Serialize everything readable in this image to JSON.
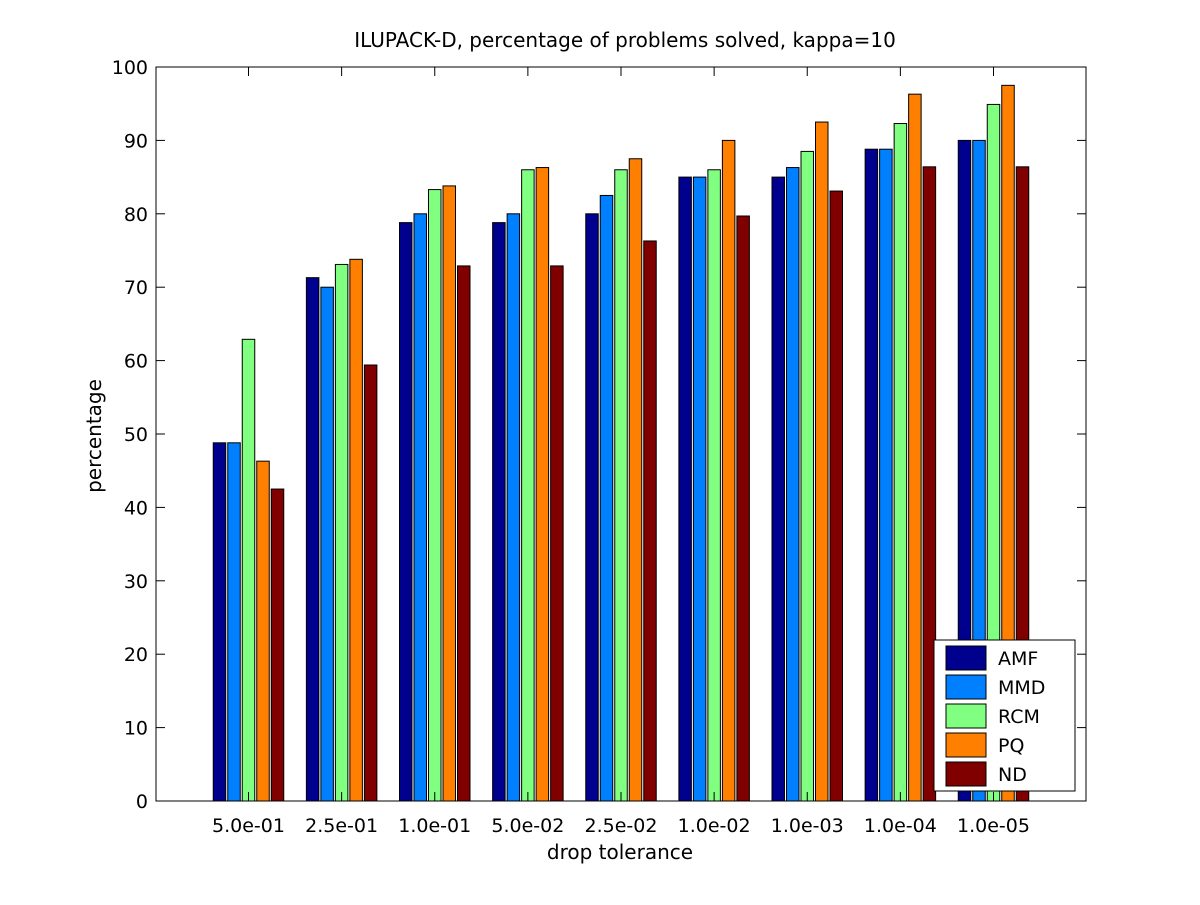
{
  "chart_data": {
    "type": "bar",
    "title": "ILUPACK-D, percentage of problems solved, kappa=10",
    "xlabel": "drop tolerance",
    "ylabel": "percentage",
    "ylim": [
      0,
      100
    ],
    "yticks": [
      "0",
      "10",
      "20",
      "30",
      "40",
      "50",
      "60",
      "70",
      "80",
      "90",
      "100"
    ],
    "categories": [
      "5.0e-01",
      "2.5e-01",
      "1.0e-01",
      "5.0e-02",
      "2.5e-02",
      "1.0e-02",
      "1.0e-03",
      "1.0e-04",
      "1.0e-05"
    ],
    "series": [
      {
        "name": "AMF",
        "color": "#00008f",
        "values": [
          48.8,
          71.3,
          78.8,
          78.8,
          80.0,
          85.0,
          85.0,
          88.8,
          90.0
        ]
      },
      {
        "name": "MMD",
        "color": "#0080ff",
        "values": [
          48.8,
          70.0,
          80.0,
          80.0,
          82.5,
          85.0,
          86.3,
          88.8,
          90.0
        ]
      },
      {
        "name": "RCM",
        "color": "#80ff80",
        "values": [
          62.9,
          73.1,
          83.3,
          86.0,
          86.0,
          86.0,
          88.5,
          92.3,
          94.9
        ]
      },
      {
        "name": "PQ",
        "color": "#ff8000",
        "values": [
          46.3,
          73.8,
          83.8,
          86.3,
          87.5,
          90.0,
          92.5,
          96.3,
          97.5
        ]
      },
      {
        "name": "ND",
        "color": "#800000",
        "values": [
          42.5,
          59.4,
          72.9,
          72.9,
          76.3,
          79.7,
          83.1,
          86.4,
          86.4
        ]
      }
    ],
    "grid": false,
    "legend_position": "bottom-right"
  }
}
